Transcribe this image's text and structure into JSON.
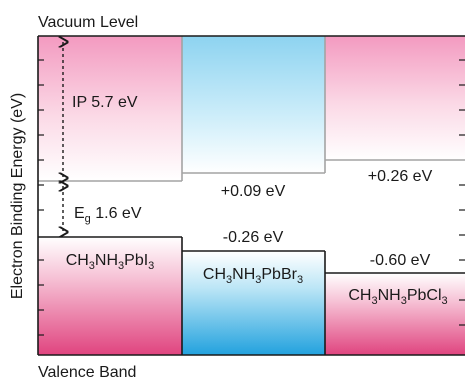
{
  "diagram": {
    "top_label": "Vacuum Level",
    "bottom_label": "Valence Band",
    "y_axis_label": "Electron Binding Energy (eV)",
    "ip_label": "IP 5.7 eV",
    "eg_label_main": "E",
    "eg_label_sub": "g",
    "eg_label_value": " 1.6 eV",
    "materials": [
      {
        "name": "MAPbI3",
        "formula_parts": [
          "CH",
          "3",
          "NH",
          "3",
          "PbI",
          "3"
        ],
        "cb_shift": "",
        "vb_shift": ""
      },
      {
        "name": "MAPbBr3",
        "formula_parts": [
          "CH",
          "3",
          "NH",
          "3",
          "PbBr",
          "3"
        ],
        "cb_shift": "+0.09 eV",
        "vb_shift": "-0.26 eV"
      },
      {
        "name": "MAPbCl3",
        "formula_parts": [
          "CH",
          "3",
          "NH",
          "3",
          "PbCl",
          "3"
        ],
        "cb_shift": "+0.26 eV",
        "vb_shift": "-0.60 eV"
      }
    ],
    "colors": {
      "pink_strong": "#e0447f",
      "pink_light": "#f7c8d9",
      "cyan_strong": "#2aa6e0",
      "cyan_light": "#c4e8f6",
      "frame": "#1a1a1a",
      "cb_line": "#9a9a9a"
    }
  }
}
